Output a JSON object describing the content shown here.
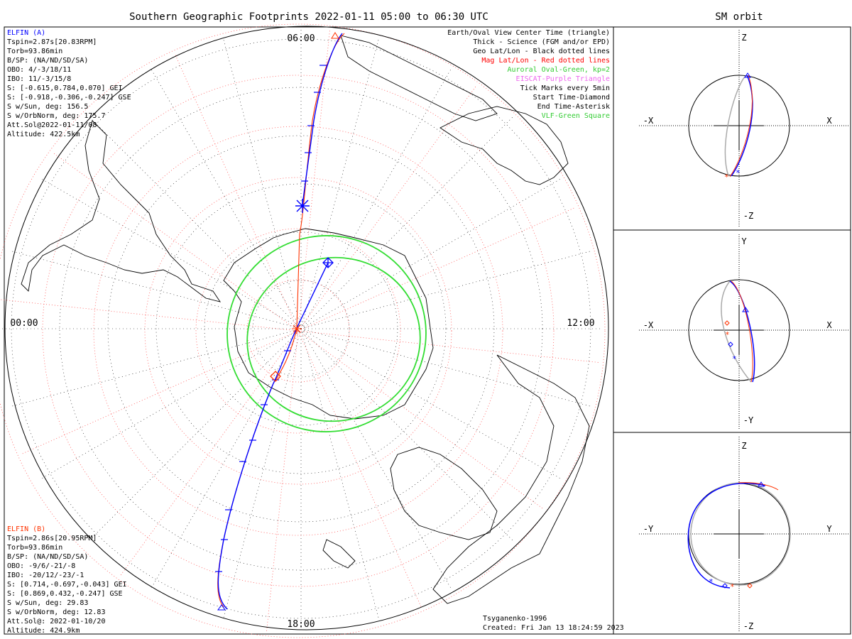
{
  "main_title": "Southern Geographic Footprints 2022-01-11 05:00 to 06:30 UTC",
  "orbit_title": "SM orbit",
  "clock_labels": {
    "top": "06:00",
    "left": "00:00",
    "right": "12:00",
    "bottom": "18:00"
  },
  "elfin_a": {
    "name": "ELFIN (A)",
    "lines": [
      "Tspin=2.87s[20.83RPM]",
      "Torb=93.86min",
      "B/SP: (NA/ND/SD/SA)",
      "OBO: 4/-3/18/11",
      "IBO: 11/-3/15/8",
      "S: [-0.615,0.784,0.070] GEI",
      "S: [-0.918,-0.306,-0.247] GSE",
      "S w/Sun, deg: 156.5",
      "S w/OrbNorm, deg: 175.7",
      "Att.Sol@2022-01-11/08",
      "Altitude: 422.5km"
    ]
  },
  "elfin_b": {
    "name": "ELFIN (B)",
    "lines": [
      "Tspin=2.86s[20.95RPM]",
      "Torb=93.86min",
      "B/SP: (NA/ND/SD/SA)",
      "OBO: -9/6/-21/-8",
      "IBO: -20/12/-23/-1",
      "S: [0.714,-0.697,-0.043] GEI",
      "S: [0.869,0.432,-0.247] GSE",
      "S w/Sun, deg: 29.83",
      "S w/OrbNorm, deg: 12.83",
      "Att.Sol@: 2022-01-10/20",
      "Altitude: 424.9km"
    ]
  },
  "legend": [
    {
      "text": "Earth/Oval View Center Time (triangle)",
      "color": "#000000"
    },
    {
      "text": "Thick - Science (FGM and/or EPD)",
      "color": "#000000"
    },
    {
      "text": "Geo Lat/Lon - Black dotted lines",
      "color": "#000000"
    },
    {
      "text": "Mag Lat/Lon - Red dotted lines",
      "color": "#ff0000"
    },
    {
      "text": "Auroral Oval-Green, kp=2",
      "color": "#33cc33"
    },
    {
      "text": "EISCAT-Purple Triangle",
      "color": "#ee66ee"
    },
    {
      "text": "Tick Marks every 5min",
      "color": "#000000"
    },
    {
      "text": "Start Time-Diamond",
      "color": "#000000"
    },
    {
      "text": "End Time-Asterisk",
      "color": "#000000"
    },
    {
      "text": "VLF-Green Square",
      "color": "#33cc33"
    }
  ],
  "footer": {
    "model": "Tsyganenko-1996",
    "created": "Created: Fri Jan 13 18:24:59 2023"
  },
  "sm_panels": [
    {
      "top": "Z",
      "bottom": "-Z",
      "left": "-X",
      "right": "X"
    },
    {
      "top": "Y",
      "bottom": "-Y",
      "left": "-X",
      "right": "X"
    },
    {
      "top": "Z",
      "bottom": "-Z",
      "left": "-Y",
      "right": "Y"
    }
  ],
  "colors": {
    "elfin_a": "#0000ff",
    "elfin_b": "#ff3300",
    "oval": "#33dd33",
    "grid_red": "#ff5555",
    "grid_black": "#000000",
    "orbit_gray": "#aaaaaa"
  },
  "chart_data": {
    "type": "polar-map",
    "projection": "southern-hemisphere-polar",
    "time_range": [
      "2022-01-11 05:00",
      "2022-01-11 06:30"
    ],
    "tracks": [
      {
        "name": "ELFIN (A)",
        "start_marker": "diamond",
        "end_marker": "asterisk",
        "tick_interval_min": 5
      },
      {
        "name": "ELFIN (B)",
        "start_marker": "diamond",
        "end_marker": "asterisk",
        "tick_interval_min": 5
      }
    ],
    "auroral_oval_kp": 2
  }
}
